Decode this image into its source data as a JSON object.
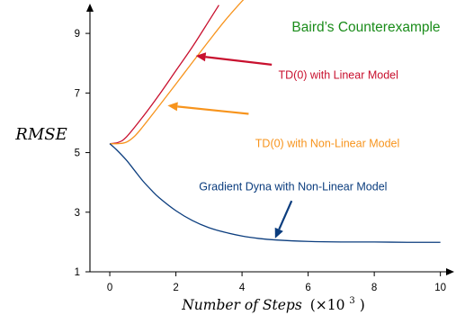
{
  "chart_data": {
    "type": "line",
    "title": "Baird’s Counterexample",
    "xlabel_main": "Number of Steps",
    "xlabel_unit": "(×10",
    "xlabel_exp": "3",
    "xlabel_close": ")",
    "ylabel": "RMSE",
    "xlim": [
      -0.6,
      10.2
    ],
    "ylim": [
      1,
      10
    ],
    "xticks": [
      0,
      2,
      4,
      6,
      8,
      10
    ],
    "yticks": [
      1,
      3,
      5,
      7,
      9
    ],
    "grid": false,
    "series": [
      {
        "name": "TD(0) with Linear Model",
        "color": "#c8102e",
        "x": [
          0,
          0.25,
          0.5,
          1,
          1.5,
          2,
          2.5,
          3,
          3.3
        ],
        "y": [
          5.3,
          5.34,
          5.52,
          6.2,
          6.95,
          7.75,
          8.55,
          9.42,
          9.95
        ]
      },
      {
        "name": "TD(0) with Non-Linear Model",
        "color": "#f7941d",
        "x": [
          0,
          0.25,
          0.5,
          0.75,
          1,
          1.5,
          2,
          2.5,
          3,
          3.5,
          4,
          4.2
        ],
        "y": [
          5.3,
          5.3,
          5.35,
          5.55,
          5.87,
          6.58,
          7.3,
          8.03,
          8.75,
          9.45,
          10.08,
          10.3
        ]
      },
      {
        "name": "Gradient Dyna with Non-Linear Model",
        "color": "#0b3d7e",
        "x": [
          0,
          0.2,
          0.5,
          0.75,
          1,
          1.25,
          1.5,
          2,
          2.5,
          3,
          3.5,
          4,
          4.5,
          5,
          6,
          7,
          8,
          9,
          10
        ],
        "y": [
          5.3,
          5.1,
          4.75,
          4.4,
          4.05,
          3.75,
          3.48,
          3.05,
          2.72,
          2.48,
          2.32,
          2.2,
          2.12,
          2.07,
          2.02,
          2.0,
          2.0,
          1.99,
          1.99
        ]
      }
    ],
    "annotations": [
      {
        "text": "TD(0) with Linear Model",
        "color": "#c8102e",
        "text_x": 5.1,
        "text_y": 7.6,
        "arrow_from": [
          4.9,
          7.95
        ],
        "arrow_to": [
          2.6,
          8.25
        ]
      },
      {
        "text": "TD(0) with Non-Linear Model",
        "color": "#f7941d",
        "text_x": 4.4,
        "text_y": 5.3,
        "arrow_from": [
          4.2,
          6.3
        ],
        "arrow_to": [
          1.75,
          6.58
        ]
      },
      {
        "text": "Gradient Dyna with Non-Linear Model",
        "color": "#0b3d7e",
        "text_x": 2.7,
        "text_y": 3.85,
        "arrow_from": [
          5.5,
          3.38
        ],
        "arrow_to": [
          5.0,
          2.12
        ]
      }
    ],
    "title_color": "#1a8c1a"
  }
}
